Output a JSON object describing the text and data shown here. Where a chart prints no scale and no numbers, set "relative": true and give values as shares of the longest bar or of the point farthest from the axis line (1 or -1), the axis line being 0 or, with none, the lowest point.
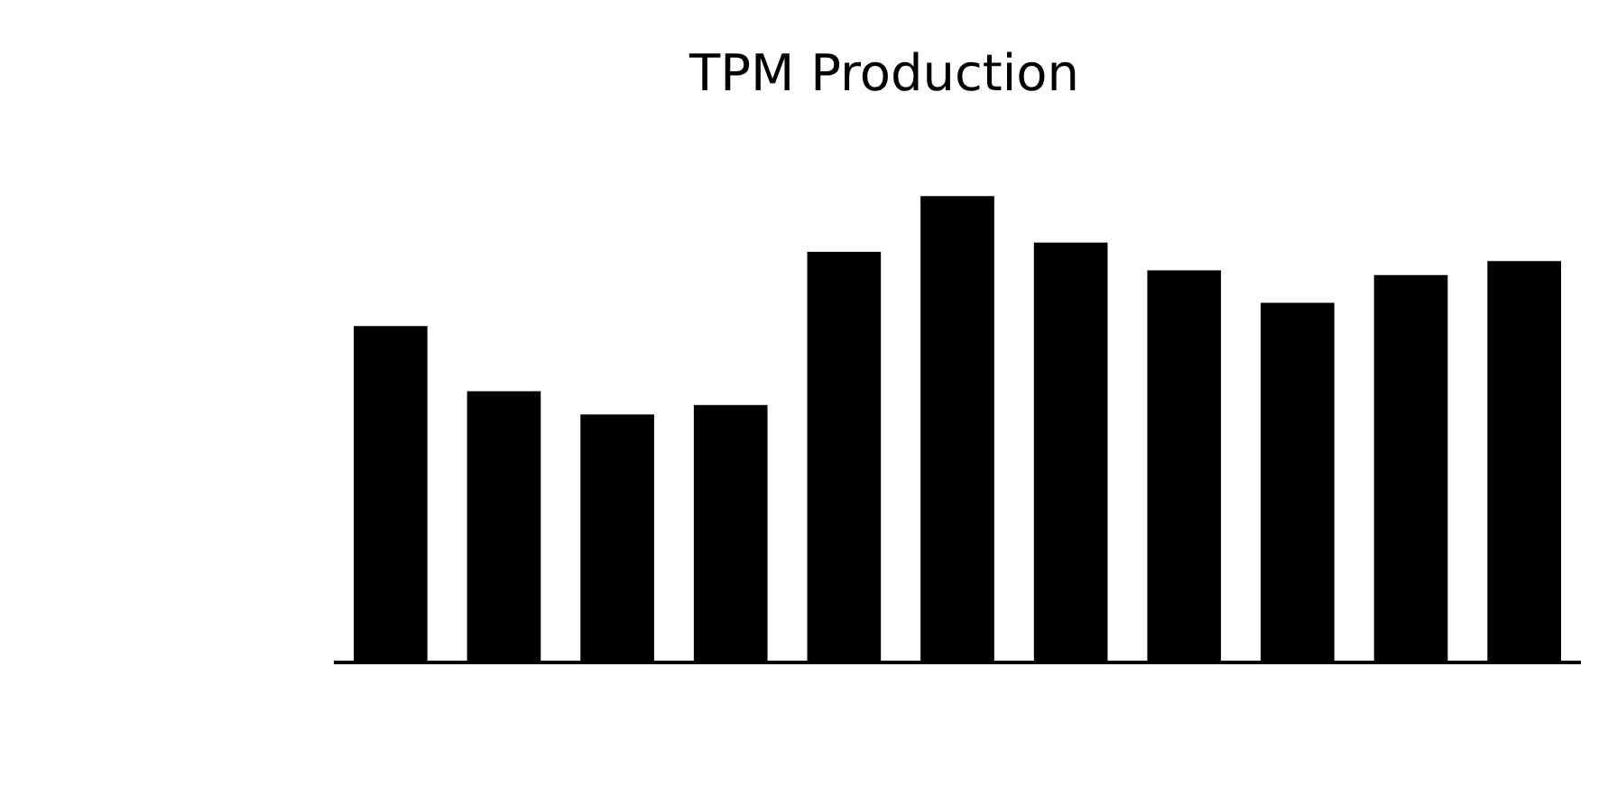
{
  "chart_data": {
    "type": "bar",
    "title": "TPM Production",
    "relative": true,
    "categories": [
      null,
      null,
      null,
      null,
      null,
      null,
      null,
      null,
      null,
      null,
      null
    ],
    "values": [
      0.72,
      0.58,
      0.53,
      0.55,
      0.88,
      1,
      0.9,
      0.84,
      0.77,
      0.83,
      0.86
    ],
    "color": "#000000"
  }
}
